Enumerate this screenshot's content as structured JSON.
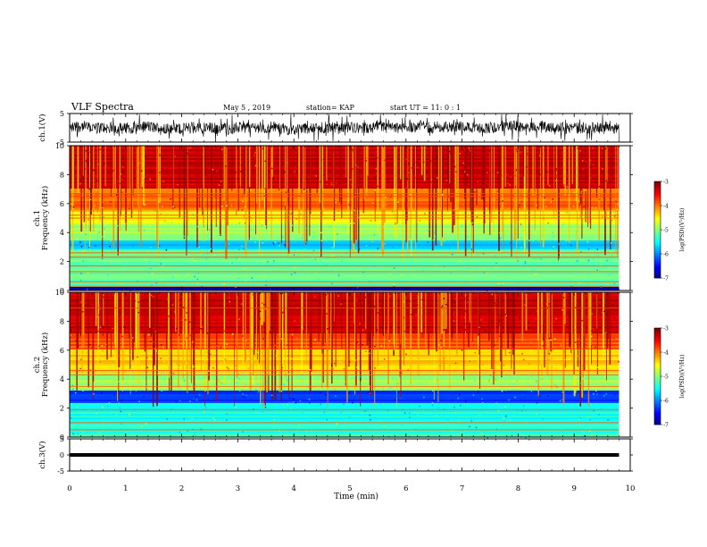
{
  "header": {
    "title": "VLF Spectra",
    "date": "May 5 , 2019",
    "station": "station= KAP",
    "start": "start UT =  11: 0 : 1"
  },
  "chart_data": [
    {
      "type": "line",
      "panel": "ch1-waveform",
      "ylabel": "ch.1(V)",
      "ylim": [
        -5,
        5
      ],
      "yticks": [
        "5",
        "-5"
      ],
      "xlim": [
        0,
        10
      ],
      "note": "dense noisy voltage trace spanning 0–9.8 min"
    },
    {
      "type": "heatmap",
      "panel": "ch1-spectrogram",
      "ylabel": "ch.1\nFrequency  (kHz)",
      "ylim": [
        0,
        10
      ],
      "yticks": [
        "0",
        "2",
        "4",
        "6",
        "8",
        "10"
      ],
      "xlim": [
        0,
        10
      ],
      "colorbar": {
        "label": "log(PSD)(V²/Hz)",
        "range": [
          -7,
          -3
        ],
        "ticks": [
          "-3",
          "-4",
          "-5",
          "-6",
          "-7"
        ]
      },
      "bands": [
        {
          "from": 0,
          "to": 0.3,
          "level": -6.8
        },
        {
          "from": 0.3,
          "to": 2.8,
          "level": -5.1
        },
        {
          "from": 2.8,
          "to": 3.4,
          "level": -5.7
        },
        {
          "from": 3.4,
          "to": 4.6,
          "level": -4.9
        },
        {
          "from": 4.6,
          "to": 5.6,
          "level": -4.5
        },
        {
          "from": 5.6,
          "to": 7.0,
          "level": -3.9
        },
        {
          "from": 7.0,
          "to": 10,
          "level": -3.3
        }
      ],
      "lines_khz": [
        0.3,
        0.6,
        1.3,
        1.7,
        2.3,
        2.6,
        5.0,
        5.2,
        5.5,
        6.5,
        6.7
      ]
    },
    {
      "type": "heatmap",
      "panel": "ch2-spectrogram",
      "ylabel": "ch.2\nFrequency  (kHz)",
      "ylim": [
        0,
        10
      ],
      "yticks": [
        "0",
        "2",
        "4",
        "6",
        "8",
        "10"
      ],
      "xlim": [
        0,
        10
      ],
      "colorbar": {
        "label": "log(PSD)(V²/Hz)",
        "range": [
          -7,
          -3
        ],
        "ticks": [
          "-3",
          "-4",
          "-5",
          "-6",
          "-7"
        ]
      },
      "bands": [
        {
          "from": 0,
          "to": 1.0,
          "level": -5.3
        },
        {
          "from": 1.0,
          "to": 2.4,
          "level": -5.4
        },
        {
          "from": 2.4,
          "to": 3.2,
          "level": -6.3
        },
        {
          "from": 3.2,
          "to": 4.4,
          "level": -4.9
        },
        {
          "from": 4.4,
          "to": 6.0,
          "level": -4.3
        },
        {
          "from": 6.0,
          "to": 7.2,
          "level": -3.8
        },
        {
          "from": 7.2,
          "to": 10,
          "level": -3.3
        }
      ],
      "lines_khz": [
        0.5,
        1.0,
        1.9,
        3.5,
        4.3,
        4.6,
        6.1,
        8.9
      ]
    },
    {
      "type": "line",
      "panel": "ch3-waveform",
      "ylabel": "ch.3(V)",
      "ylim": [
        -5,
        5
      ],
      "yticks": [
        "5",
        "0",
        "-5"
      ],
      "xlim": [
        0,
        10
      ],
      "constant_value": 0,
      "x": [
        0,
        9.8
      ]
    }
  ],
  "xaxis": {
    "label": "Time  (min)",
    "ticks": [
      "0",
      "1",
      "2",
      "3",
      "4",
      "5",
      "6",
      "7",
      "8",
      "9",
      "10"
    ]
  }
}
